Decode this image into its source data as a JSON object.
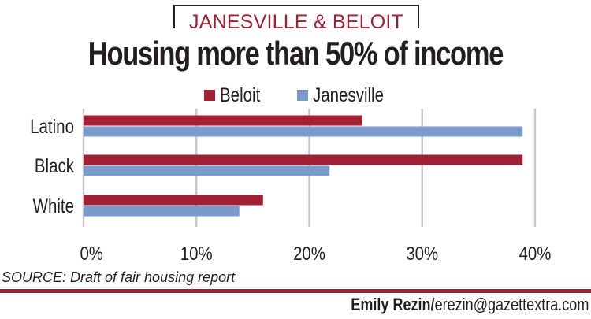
{
  "kicker": "JANESVILLE & BELOIT",
  "title": "Housing more than 50% of income",
  "source": "SOURCE: Draft of fair housing report",
  "credit": {
    "name": "Emily Rezin/",
    "email": "erezin@gazettextra.com"
  },
  "chart_data": {
    "type": "bar",
    "orientation": "horizontal",
    "categories": [
      "Latino",
      "Black",
      "White"
    ],
    "series": [
      {
        "name": "Beloit",
        "color": "#a31f34",
        "values": [
          24.7,
          38.9,
          15.9
        ]
      },
      {
        "name": "Janesville",
        "color": "#7b9acb",
        "values": [
          38.9,
          21.8,
          13.8
        ]
      }
    ],
    "xlim": [
      0,
      40
    ],
    "xticks": [
      0,
      10,
      20,
      30,
      40
    ],
    "xtick_labels": [
      "0%",
      "10%",
      "20%",
      "30%",
      "40%"
    ],
    "grid": true,
    "legend": "top"
  }
}
